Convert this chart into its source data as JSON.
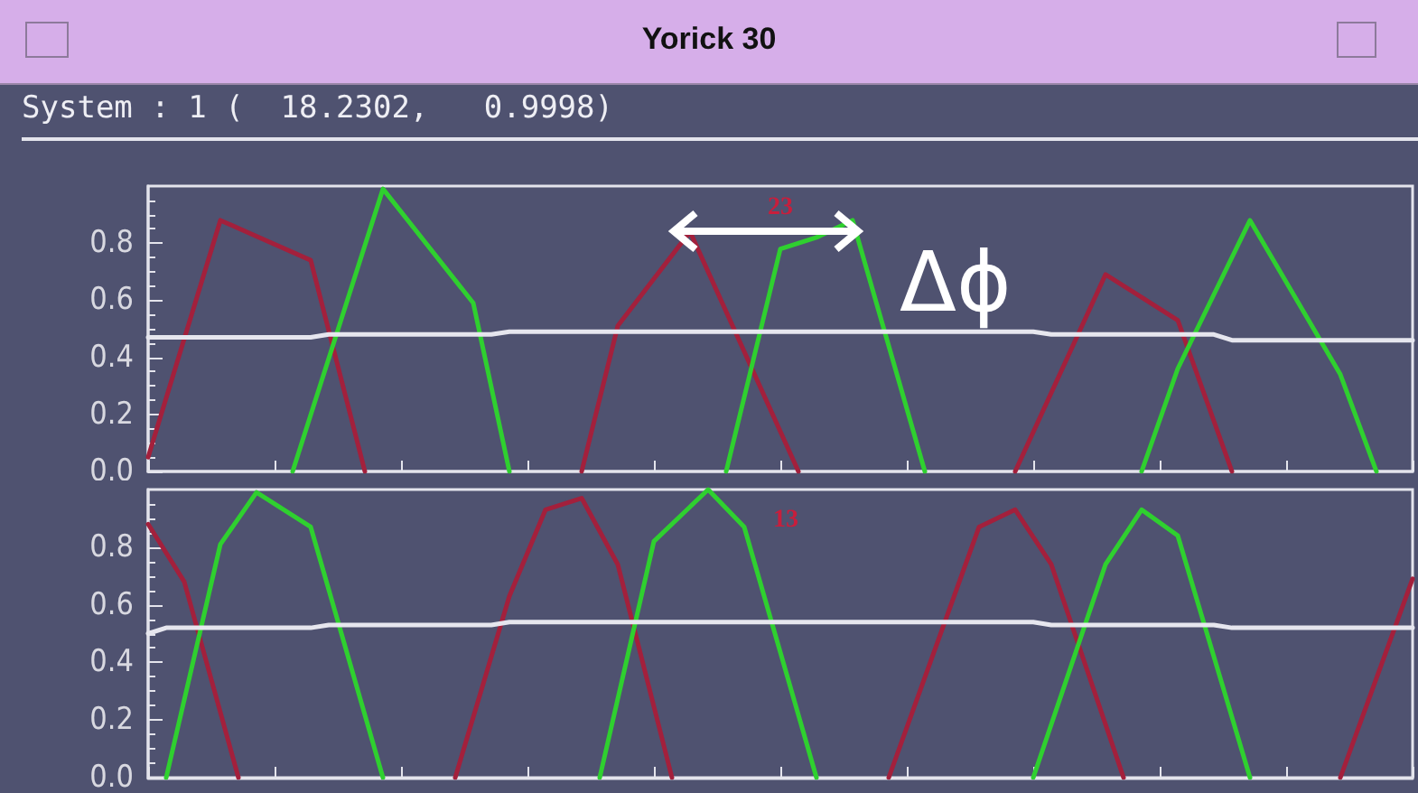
{
  "chart_data": [
    {
      "type": "line",
      "title": "Yorick 30",
      "subtitle": "System : 1 (  18.2302,   0.9998)",
      "annotations": [
        "23",
        "Δϕ"
      ],
      "marker": "none",
      "grid": false,
      "tick_labels": "y",
      "ylim": [
        0,
        1
      ],
      "yticks": [
        {
          "value": 0,
          "label": "0.0"
        },
        {
          "value": 0.2,
          "label": "0.2"
        },
        {
          "value": 0.4,
          "label": "0.4"
        },
        {
          "value": 0.6,
          "label": "0.6"
        },
        {
          "value": 0.8,
          "label": "0.8"
        }
      ],
      "categories": [
        null,
        null,
        null,
        null,
        null,
        null,
        null,
        null,
        null,
        null,
        null,
        null,
        null,
        null,
        null,
        null,
        null,
        null,
        null,
        null,
        null,
        null,
        null,
        null,
        null,
        null,
        null,
        null,
        null,
        null,
        null,
        null,
        null,
        null,
        null,
        null,
        null,
        null,
        null,
        null,
        null,
        null,
        null,
        null,
        null,
        null,
        null,
        null,
        null,
        null,
        null,
        null,
        null,
        null,
        null,
        null,
        null,
        null,
        null,
        null,
        null,
        null,
        null,
        null,
        null,
        null,
        null,
        null,
        null,
        null,
        null
      ],
      "series": [
        {
          "color": "#a3203c",
          "values": [
            0.05,
            null,
            null,
            null,
            0.88,
            null,
            null,
            null,
            null,
            0.74,
            null,
            null,
            0,
            null,
            null,
            null,
            null,
            null,
            null,
            null,
            null,
            null,
            null,
            null,
            null,
            null,
            null,
            null,
            null,
            null,
            null,
            null,
            null,
            null,
            null,
            null,
            null,
            null,
            null,
            null,
            null,
            null,
            null,
            null,
            null,
            null,
            null,
            null,
            null,
            null,
            null,
            null,
            null,
            null,
            null,
            null,
            null,
            null,
            null,
            null,
            null,
            null,
            null,
            null,
            null,
            null,
            null,
            null,
            null,
            null,
            null
          ]
        },
        {
          "color": "#a3203c",
          "values": [
            null,
            null,
            null,
            null,
            null,
            null,
            null,
            null,
            null,
            null,
            null,
            null,
            null,
            null,
            null,
            null,
            null,
            null,
            null,
            null,
            null,
            null,
            null,
            null,
            0,
            null,
            0.51,
            null,
            null,
            null,
            0.84,
            null,
            null,
            null,
            null,
            null,
            0,
            null,
            null,
            null,
            null,
            null,
            null,
            null,
            null,
            null,
            null,
            null,
            null,
            null,
            null,
            null,
            null,
            null,
            null,
            null,
            null,
            null,
            null,
            null,
            null,
            null,
            null,
            null,
            null,
            null,
            null,
            null,
            null,
            null,
            null
          ]
        },
        {
          "color": "#a3203c",
          "values": [
            null,
            null,
            null,
            null,
            null,
            null,
            null,
            null,
            null,
            null,
            null,
            null,
            null,
            null,
            null,
            null,
            null,
            null,
            null,
            null,
            null,
            null,
            null,
            null,
            null,
            null,
            null,
            null,
            null,
            null,
            null,
            null,
            null,
            null,
            null,
            null,
            null,
            null,
            null,
            null,
            null,
            null,
            null,
            null,
            null,
            null,
            null,
            null,
            0,
            null,
            null,
            null,
            null,
            0.69,
            null,
            null,
            null,
            0.53,
            null,
            null,
            0,
            null,
            null,
            null,
            null,
            null,
            null,
            null,
            null,
            null,
            null
          ]
        },
        {
          "color": "#2fd02f",
          "values": [
            null,
            null,
            null,
            null,
            null,
            null,
            null,
            null,
            0,
            null,
            null,
            null,
            null,
            0.99,
            null,
            null,
            null,
            null,
            0.59,
            null,
            0,
            null,
            null,
            null,
            null,
            null,
            null,
            null,
            null,
            null,
            null,
            null,
            null,
            null,
            null,
            null,
            null,
            null,
            null,
            null,
            null,
            null,
            null,
            null,
            null,
            null,
            null,
            null,
            null,
            null,
            null,
            null,
            null,
            null,
            null,
            null,
            null,
            null,
            null,
            null,
            null,
            null,
            null,
            null,
            null,
            null,
            null,
            null,
            null,
            null,
            null
          ]
        },
        {
          "color": "#2fd02f",
          "values": [
            null,
            null,
            null,
            null,
            null,
            null,
            null,
            null,
            null,
            null,
            null,
            null,
            null,
            null,
            null,
            null,
            null,
            null,
            null,
            null,
            null,
            null,
            null,
            null,
            null,
            null,
            null,
            null,
            null,
            null,
            null,
            null,
            0,
            null,
            null,
            0.78,
            null,
            0.82,
            null,
            0.88,
            null,
            null,
            null,
            0,
            null,
            null,
            null,
            null,
            null,
            null,
            null,
            null,
            null,
            null,
            null,
            null,
            null,
            null,
            null,
            null,
            null,
            null,
            null,
            null,
            null,
            null,
            null,
            null,
            null,
            null,
            null
          ]
        },
        {
          "color": "#2fd02f",
          "values": [
            null,
            null,
            null,
            null,
            null,
            null,
            null,
            null,
            null,
            null,
            null,
            null,
            null,
            null,
            null,
            null,
            null,
            null,
            null,
            null,
            null,
            null,
            null,
            null,
            null,
            null,
            null,
            null,
            null,
            null,
            null,
            null,
            null,
            null,
            null,
            null,
            null,
            null,
            null,
            null,
            null,
            null,
            null,
            null,
            null,
            null,
            null,
            null,
            null,
            null,
            null,
            null,
            null,
            null,
            null,
            0,
            null,
            0.36,
            null,
            null,
            null,
            0.88,
            null,
            null,
            null,
            null,
            0.34,
            null,
            0,
            null,
            null
          ]
        },
        {
          "color": "#e6e6ee",
          "values": [
            0.47,
            0.47,
            0.47,
            0.47,
            0.47,
            0.47,
            0.47,
            0.47,
            0.47,
            0.47,
            0.48,
            0.48,
            0.48,
            0.48,
            0.48,
            0.48,
            0.48,
            0.48,
            0.48,
            0.48,
            0.49,
            0.49,
            0.49,
            0.49,
            0.49,
            0.49,
            0.49,
            0.49,
            0.49,
            0.49,
            0.49,
            0.49,
            0.49,
            0.49,
            0.49,
            0.49,
            0.49,
            0.49,
            0.49,
            0.49,
            0.49,
            0.49,
            0.49,
            0.49,
            0.49,
            0.49,
            0.49,
            0.49,
            0.49,
            0.49,
            0.48,
            0.48,
            0.48,
            0.48,
            0.48,
            0.48,
            0.48,
            0.48,
            0.48,
            0.48,
            0.46,
            0.46,
            0.46,
            0.46,
            0.46,
            0.46,
            0.46,
            0.46,
            0.46,
            0.46,
            0.46
          ]
        }
      ]
    },
    {
      "type": "line",
      "annotations": [
        "13"
      ],
      "marker": "none",
      "grid": false,
      "tick_labels": "y",
      "ylim": [
        0,
        1
      ],
      "yticks": [
        {
          "value": 0,
          "label": "0.0"
        },
        {
          "value": 0.2,
          "label": "0.2"
        },
        {
          "value": 0.4,
          "label": "0.4"
        },
        {
          "value": 0.6,
          "label": "0.6"
        },
        {
          "value": 0.8,
          "label": "0.8"
        }
      ],
      "categories": [
        null,
        null,
        null,
        null,
        null,
        null,
        null,
        null,
        null,
        null,
        null,
        null,
        null,
        null,
        null,
        null,
        null,
        null,
        null,
        null,
        null,
        null,
        null,
        null,
        null,
        null,
        null,
        null,
        null,
        null,
        null,
        null,
        null,
        null,
        null,
        null,
        null,
        null,
        null,
        null,
        null,
        null,
        null,
        null,
        null,
        null,
        null,
        null,
        null,
        null,
        null,
        null,
        null,
        null,
        null,
        null,
        null,
        null,
        null,
        null,
        null,
        null,
        null,
        null,
        null,
        null,
        null,
        null,
        null,
        null,
        null
      ],
      "series": [
        {
          "color": "#a3203c",
          "values": [
            0.88,
            null,
            0.68,
            null,
            null,
            0,
            null,
            null,
            null,
            null,
            null,
            null,
            null,
            null,
            null,
            null,
            null,
            null,
            null,
            null,
            null,
            null,
            null,
            null,
            null,
            null,
            null,
            null,
            null,
            null,
            null,
            null,
            null,
            null,
            null,
            null,
            null,
            null,
            null,
            null,
            null,
            null,
            null,
            null,
            null,
            null,
            null,
            null,
            null,
            null,
            null,
            null,
            null,
            null,
            null,
            null,
            null,
            null,
            null,
            null,
            null,
            null,
            null,
            null,
            null,
            null,
            null,
            null,
            null,
            null,
            null
          ]
        },
        {
          "color": "#a3203c",
          "values": [
            null,
            null,
            null,
            null,
            null,
            null,
            null,
            null,
            null,
            null,
            null,
            null,
            null,
            null,
            null,
            null,
            null,
            0,
            null,
            null,
            0.63,
            null,
            0.93,
            null,
            0.97,
            null,
            0.74,
            null,
            null,
            0,
            null,
            null,
            null,
            null,
            null,
            null,
            null,
            null,
            null,
            null,
            null,
            null,
            null,
            null,
            null,
            null,
            null,
            null,
            null,
            null,
            null,
            null,
            null,
            null,
            null,
            null,
            null,
            null,
            null,
            null,
            null,
            null,
            null,
            null,
            null,
            null,
            null,
            null,
            null,
            null,
            null
          ]
        },
        {
          "color": "#a3203c",
          "values": [
            null,
            null,
            null,
            null,
            null,
            null,
            null,
            null,
            null,
            null,
            null,
            null,
            null,
            null,
            null,
            null,
            null,
            null,
            null,
            null,
            null,
            null,
            null,
            null,
            null,
            null,
            null,
            null,
            null,
            null,
            null,
            null,
            null,
            null,
            null,
            null,
            null,
            null,
            null,
            null,
            null,
            0,
            null,
            null,
            null,
            null,
            0.87,
            null,
            0.93,
            null,
            0.74,
            null,
            null,
            null,
            0,
            null,
            null,
            null,
            null,
            null,
            null,
            null,
            null,
            null,
            null,
            null,
            null,
            null,
            null,
            null,
            null
          ]
        },
        {
          "color": "#a3203c",
          "values": [
            null,
            null,
            null,
            null,
            null,
            null,
            null,
            null,
            null,
            null,
            null,
            null,
            null,
            null,
            null,
            null,
            null,
            null,
            null,
            null,
            null,
            null,
            null,
            null,
            null,
            null,
            null,
            null,
            null,
            null,
            null,
            null,
            null,
            null,
            null,
            null,
            null,
            null,
            null,
            null,
            null,
            null,
            null,
            null,
            null,
            null,
            null,
            null,
            null,
            null,
            null,
            null,
            null,
            null,
            null,
            null,
            null,
            null,
            null,
            null,
            null,
            null,
            null,
            null,
            null,
            null,
            0,
            null,
            null,
            null,
            0.69
          ]
        },
        {
          "color": "#2fd02f",
          "values": [
            null,
            0,
            null,
            null,
            0.81,
            null,
            0.99,
            null,
            null,
            0.87,
            null,
            null,
            null,
            0,
            null,
            null,
            null,
            null,
            null,
            null,
            null,
            null,
            null,
            null,
            null,
            null,
            null,
            null,
            null,
            null,
            null,
            null,
            null,
            null,
            null,
            null,
            null,
            null,
            null,
            null,
            null,
            null,
            null,
            null,
            null,
            null,
            null,
            null,
            null,
            null,
            null,
            null,
            null,
            null,
            null,
            null,
            null,
            null,
            null,
            null,
            null,
            null,
            null,
            null,
            null,
            null,
            null,
            null,
            null,
            null,
            null
          ]
        },
        {
          "color": "#2fd02f",
          "values": [
            null,
            null,
            null,
            null,
            null,
            null,
            null,
            null,
            null,
            null,
            null,
            null,
            null,
            null,
            null,
            null,
            null,
            null,
            null,
            null,
            null,
            null,
            null,
            null,
            null,
            0,
            null,
            null,
            0.82,
            null,
            null,
            1.0,
            null,
            0.87,
            null,
            null,
            null,
            0,
            null,
            null,
            null,
            null,
            null,
            null,
            null,
            null,
            null,
            null,
            null,
            null,
            null,
            null,
            null,
            null,
            null,
            null,
            null,
            null,
            null,
            null,
            null,
            null,
            null,
            null,
            null,
            null,
            null,
            null,
            null,
            null,
            null
          ]
        },
        {
          "color": "#2fd02f",
          "values": [
            null,
            null,
            null,
            null,
            null,
            null,
            null,
            null,
            null,
            null,
            null,
            null,
            null,
            null,
            null,
            null,
            null,
            null,
            null,
            null,
            null,
            null,
            null,
            null,
            null,
            null,
            null,
            null,
            null,
            null,
            null,
            null,
            null,
            null,
            null,
            null,
            null,
            null,
            null,
            null,
            null,
            null,
            null,
            null,
            null,
            null,
            null,
            null,
            null,
            0,
            null,
            null,
            null,
            0.74,
            null,
            0.93,
            null,
            0.84,
            null,
            null,
            null,
            0,
            null,
            null,
            null,
            null,
            null,
            null,
            null,
            null,
            null
          ]
        },
        {
          "color": "#e6e6ee",
          "values": [
            0.5,
            0.52,
            0.52,
            0.52,
            0.52,
            0.52,
            0.52,
            0.52,
            0.52,
            0.52,
            0.53,
            0.53,
            0.53,
            0.53,
            0.53,
            0.53,
            0.53,
            0.53,
            0.53,
            0.53,
            0.54,
            0.54,
            0.54,
            0.54,
            0.54,
            0.54,
            0.54,
            0.54,
            0.54,
            0.54,
            0.54,
            0.54,
            0.54,
            0.54,
            0.54,
            0.54,
            0.54,
            0.54,
            0.54,
            0.54,
            0.54,
            0.54,
            0.54,
            0.54,
            0.54,
            0.54,
            0.54,
            0.54,
            0.54,
            0.54,
            0.53,
            0.53,
            0.53,
            0.53,
            0.53,
            0.53,
            0.53,
            0.53,
            0.53,
            0.53,
            0.52,
            0.52,
            0.52,
            0.52,
            0.52,
            0.52,
            0.52,
            0.52,
            0.52,
            0.52,
            0.52
          ]
        }
      ]
    }
  ]
}
